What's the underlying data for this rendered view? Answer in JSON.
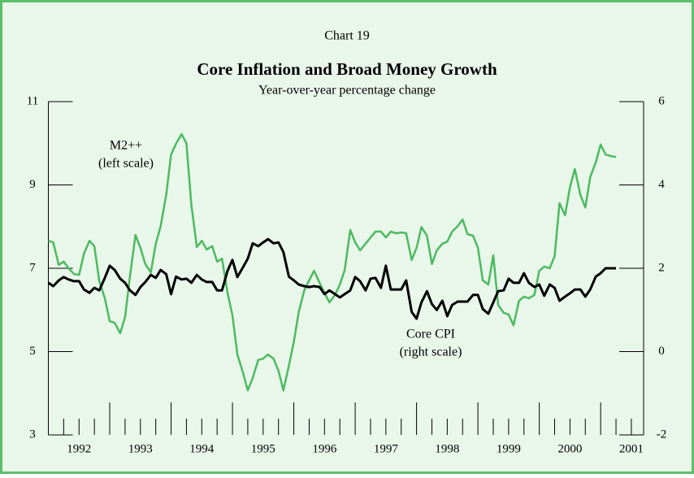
{
  "chart_data": {
    "type": "line",
    "header": "Chart 19",
    "title": "Core Inflation and Broad Money Growth",
    "subtitle": "Year-over-year percentage change",
    "annotations": [
      {
        "lines": [
          "M2++",
          "(left scale)"
        ],
        "series": 0
      },
      {
        "lines": [
          "Core CPI",
          "(right scale)"
        ],
        "series": 1
      }
    ],
    "x": [
      1992.0,
      1992.08,
      1992.17,
      1992.25,
      1992.33,
      1992.42,
      1992.5,
      1992.58,
      1992.67,
      1992.75,
      1992.83,
      1992.92,
      1993.0,
      1993.08,
      1993.17,
      1993.25,
      1993.33,
      1993.42,
      1993.5,
      1993.58,
      1993.67,
      1993.75,
      1993.83,
      1993.92,
      1994.0,
      1994.08,
      1994.17,
      1994.25,
      1994.33,
      1994.42,
      1994.5,
      1994.58,
      1994.67,
      1994.75,
      1994.83,
      1994.92,
      1995.0,
      1995.08,
      1995.17,
      1995.25,
      1995.33,
      1995.42,
      1995.5,
      1995.58,
      1995.67,
      1995.75,
      1995.83,
      1995.92,
      1996.0,
      1996.08,
      1996.17,
      1996.25,
      1996.33,
      1996.42,
      1996.5,
      1996.58,
      1996.67,
      1996.75,
      1996.83,
      1996.92,
      1997.0,
      1997.08,
      1997.17,
      1997.25,
      1997.33,
      1997.42,
      1997.5,
      1997.58,
      1997.67,
      1997.75,
      1997.83,
      1997.92,
      1998.0,
      1998.08,
      1998.17,
      1998.25,
      1998.33,
      1998.42,
      1998.5,
      1998.58,
      1998.67,
      1998.75,
      1998.83,
      1998.92,
      1999.0,
      1999.08,
      1999.17,
      1999.25,
      1999.33,
      1999.42,
      1999.5,
      1999.58,
      1999.67,
      1999.75,
      1999.83,
      1999.92,
      2000.0,
      2000.08,
      2000.17,
      2000.25,
      2000.33,
      2000.42,
      2000.5,
      2000.58,
      2000.67,
      2000.75,
      2000.83,
      2000.92,
      2001.0,
      2001.08,
      2001.17,
      2001.25
    ],
    "series": [
      {
        "name": "M2++",
        "color": "#4cba60",
        "axis": "y",
        "values": [
          7.66,
          7.62,
          7.08,
          7.16,
          7.0,
          6.86,
          6.84,
          7.35,
          7.66,
          7.53,
          6.69,
          6.28,
          5.73,
          5.69,
          5.44,
          5.83,
          6.8,
          7.8,
          7.49,
          7.1,
          6.9,
          7.59,
          8.01,
          8.76,
          9.73,
          9.99,
          10.22,
          10.0,
          8.52,
          7.51,
          7.66,
          7.45,
          7.53,
          7.16,
          7.23,
          6.41,
          5.87,
          4.93,
          4.5,
          4.07,
          4.37,
          4.8,
          4.83,
          4.93,
          4.83,
          4.54,
          4.07,
          4.66,
          5.24,
          5.95,
          6.47,
          6.71,
          6.94,
          6.65,
          6.41,
          6.18,
          6.36,
          6.61,
          6.96,
          7.92,
          7.62,
          7.43,
          7.59,
          7.74,
          7.88,
          7.88,
          7.74,
          7.88,
          7.84,
          7.86,
          7.84,
          7.2,
          7.49,
          7.99,
          7.78,
          7.1,
          7.43,
          7.59,
          7.64,
          7.88,
          8.01,
          8.17,
          7.82,
          7.78,
          7.49,
          6.71,
          6.61,
          7.31,
          6.12,
          5.93,
          5.89,
          5.63,
          6.22,
          6.32,
          6.28,
          6.36,
          6.94,
          7.04,
          7.0,
          7.29,
          8.56,
          8.27,
          8.95,
          9.38,
          8.76,
          8.46,
          9.19,
          9.54,
          9.97,
          9.73,
          9.69,
          9.67
        ]
      },
      {
        "name": "Core CPI",
        "color": "#000000",
        "axis": "y2",
        "values": [
          1.65,
          1.57,
          1.71,
          1.79,
          1.73,
          1.69,
          1.69,
          1.49,
          1.41,
          1.53,
          1.47,
          1.77,
          2.06,
          1.96,
          1.75,
          1.65,
          1.47,
          1.36,
          1.55,
          1.67,
          1.84,
          1.77,
          1.96,
          1.86,
          1.38,
          1.8,
          1.73,
          1.75,
          1.65,
          1.84,
          1.73,
          1.67,
          1.67,
          1.47,
          1.47,
          1.94,
          2.2,
          1.79,
          2.02,
          2.23,
          2.6,
          2.53,
          2.62,
          2.7,
          2.6,
          2.62,
          2.39,
          1.8,
          1.71,
          1.61,
          1.57,
          1.55,
          1.57,
          1.55,
          1.38,
          1.47,
          1.38,
          1.3,
          1.38,
          1.47,
          1.79,
          1.69,
          1.47,
          1.75,
          1.77,
          1.53,
          2.06,
          1.49,
          1.49,
          1.49,
          1.71,
          0.95,
          0.79,
          1.18,
          1.45,
          1.14,
          1.0,
          1.22,
          0.85,
          1.12,
          1.2,
          1.2,
          1.2,
          1.36,
          1.36,
          1.02,
          0.91,
          1.18,
          1.45,
          1.47,
          1.75,
          1.65,
          1.65,
          1.88,
          1.65,
          1.55,
          1.61,
          1.34,
          1.61,
          1.53,
          1.22,
          1.32,
          1.4,
          1.49,
          1.49,
          1.32,
          1.49,
          1.8,
          1.88,
          2.0,
          2.0,
          2.0
        ]
      }
    ],
    "xlim": [
      1992,
      2001.7
    ],
    "xticks": [
      1992,
      1993,
      1994,
      1995,
      1996,
      1997,
      1998,
      1999,
      2000,
      2001
    ],
    "ylim": [
      3,
      11
    ],
    "yticks": [
      3,
      5,
      7,
      9,
      11
    ],
    "y2lim": [
      -2,
      6
    ],
    "y2ticks": [
      -2,
      0,
      2,
      4,
      6
    ]
  }
}
